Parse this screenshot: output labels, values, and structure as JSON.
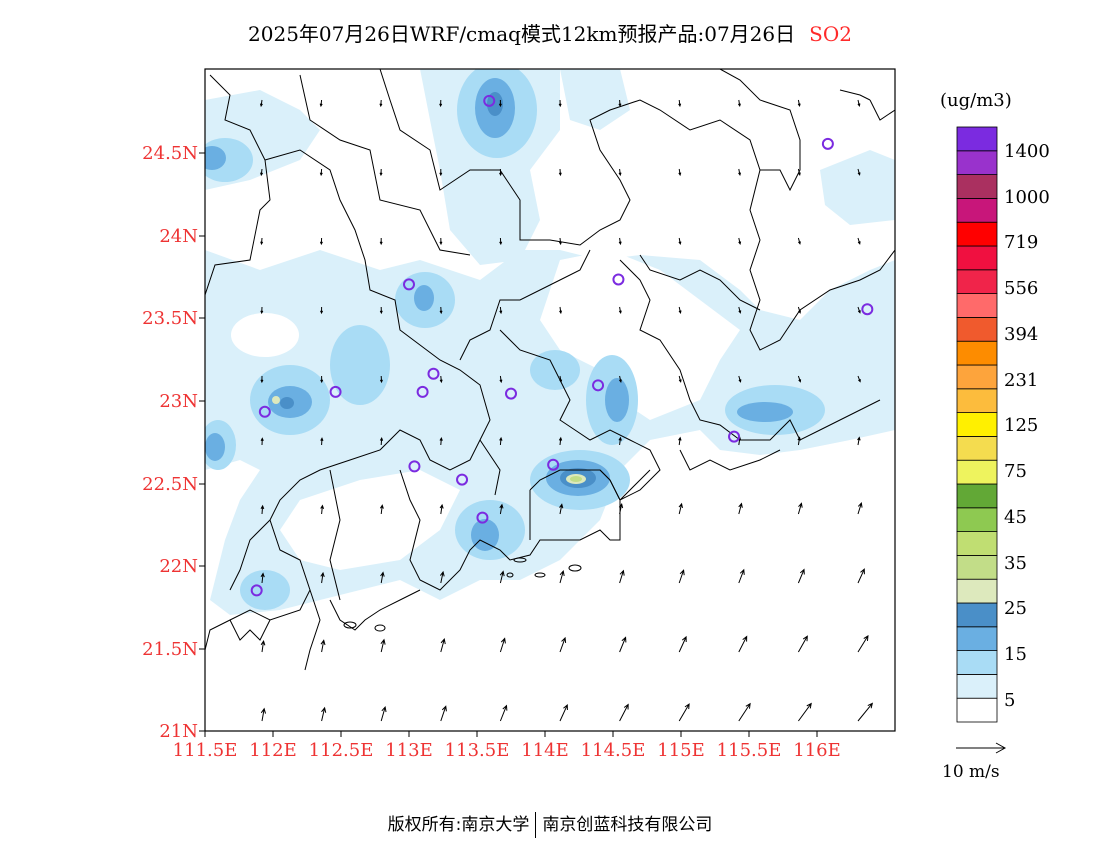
{
  "title": {
    "main": "2025年07月26日WRF/cmaq模式12km预报产品:07月26日",
    "pollutant": "SO2"
  },
  "map": {
    "lat_labels": [
      "24.5N",
      "24N",
      "23.5N",
      "23N",
      "22.5N",
      "22N",
      "21.5N",
      "21N"
    ],
    "lon_labels": [
      "111.5E",
      "112E",
      "112.5E",
      "113E",
      "113.5E",
      "114E",
      "114.5E",
      "115E",
      "115.5E",
      "116E"
    ],
    "lat_range": [
      21.0,
      25.0
    ],
    "lon_range": [
      111.5,
      116.6
    ]
  },
  "colorbar": {
    "unit": "(ug/m3)",
    "colors": [
      "#ffffff",
      "#daf0fa",
      "#a9dcf5",
      "#6aafe2",
      "#4a8fc8",
      "#dde9bd",
      "#c2dd88",
      "#c0de72",
      "#8ec951",
      "#62a836",
      "#eef35e",
      "#f4dc4f",
      "#fff000",
      "#fcbc3d",
      "#fda43c",
      "#fd8c00",
      "#f05a2d",
      "#ff6a6a",
      "#f0244a",
      "#f01040",
      "#ff0000",
      "#c8167a",
      "#aa3060",
      "#9932cc",
      "#7b2be0"
    ],
    "labels": [
      "5",
      "15",
      "25",
      "35",
      "45",
      "75",
      "125",
      "231",
      "394",
      "556",
      "719",
      "1000",
      "1400"
    ]
  },
  "wind_reference": {
    "label": "10 m/s"
  },
  "stations": [
    {
      "lon": 113.59,
      "lat": 24.81
    },
    {
      "lon": 116.08,
      "lat": 24.55
    },
    {
      "lon": 114.54,
      "lat": 23.73
    },
    {
      "lon": 116.37,
      "lat": 23.55
    },
    {
      "lon": 113.0,
      "lat": 23.7
    },
    {
      "lon": 113.18,
      "lat": 23.16
    },
    {
      "lon": 112.46,
      "lat": 23.05
    },
    {
      "lon": 113.1,
      "lat": 23.05
    },
    {
      "lon": 113.75,
      "lat": 23.04
    },
    {
      "lon": 114.39,
      "lat": 23.09
    },
    {
      "lon": 111.94,
      "lat": 22.93
    },
    {
      "lon": 115.39,
      "lat": 22.78
    },
    {
      "lon": 113.04,
      "lat": 22.6
    },
    {
      "lon": 113.39,
      "lat": 22.52
    },
    {
      "lon": 114.06,
      "lat": 22.61
    },
    {
      "lon": 113.54,
      "lat": 22.29
    },
    {
      "lon": 111.88,
      "lat": 21.85
    }
  ],
  "footer": {
    "left": "版权所有:南京大学",
    "right": "南京创蓝科技有限公司"
  }
}
